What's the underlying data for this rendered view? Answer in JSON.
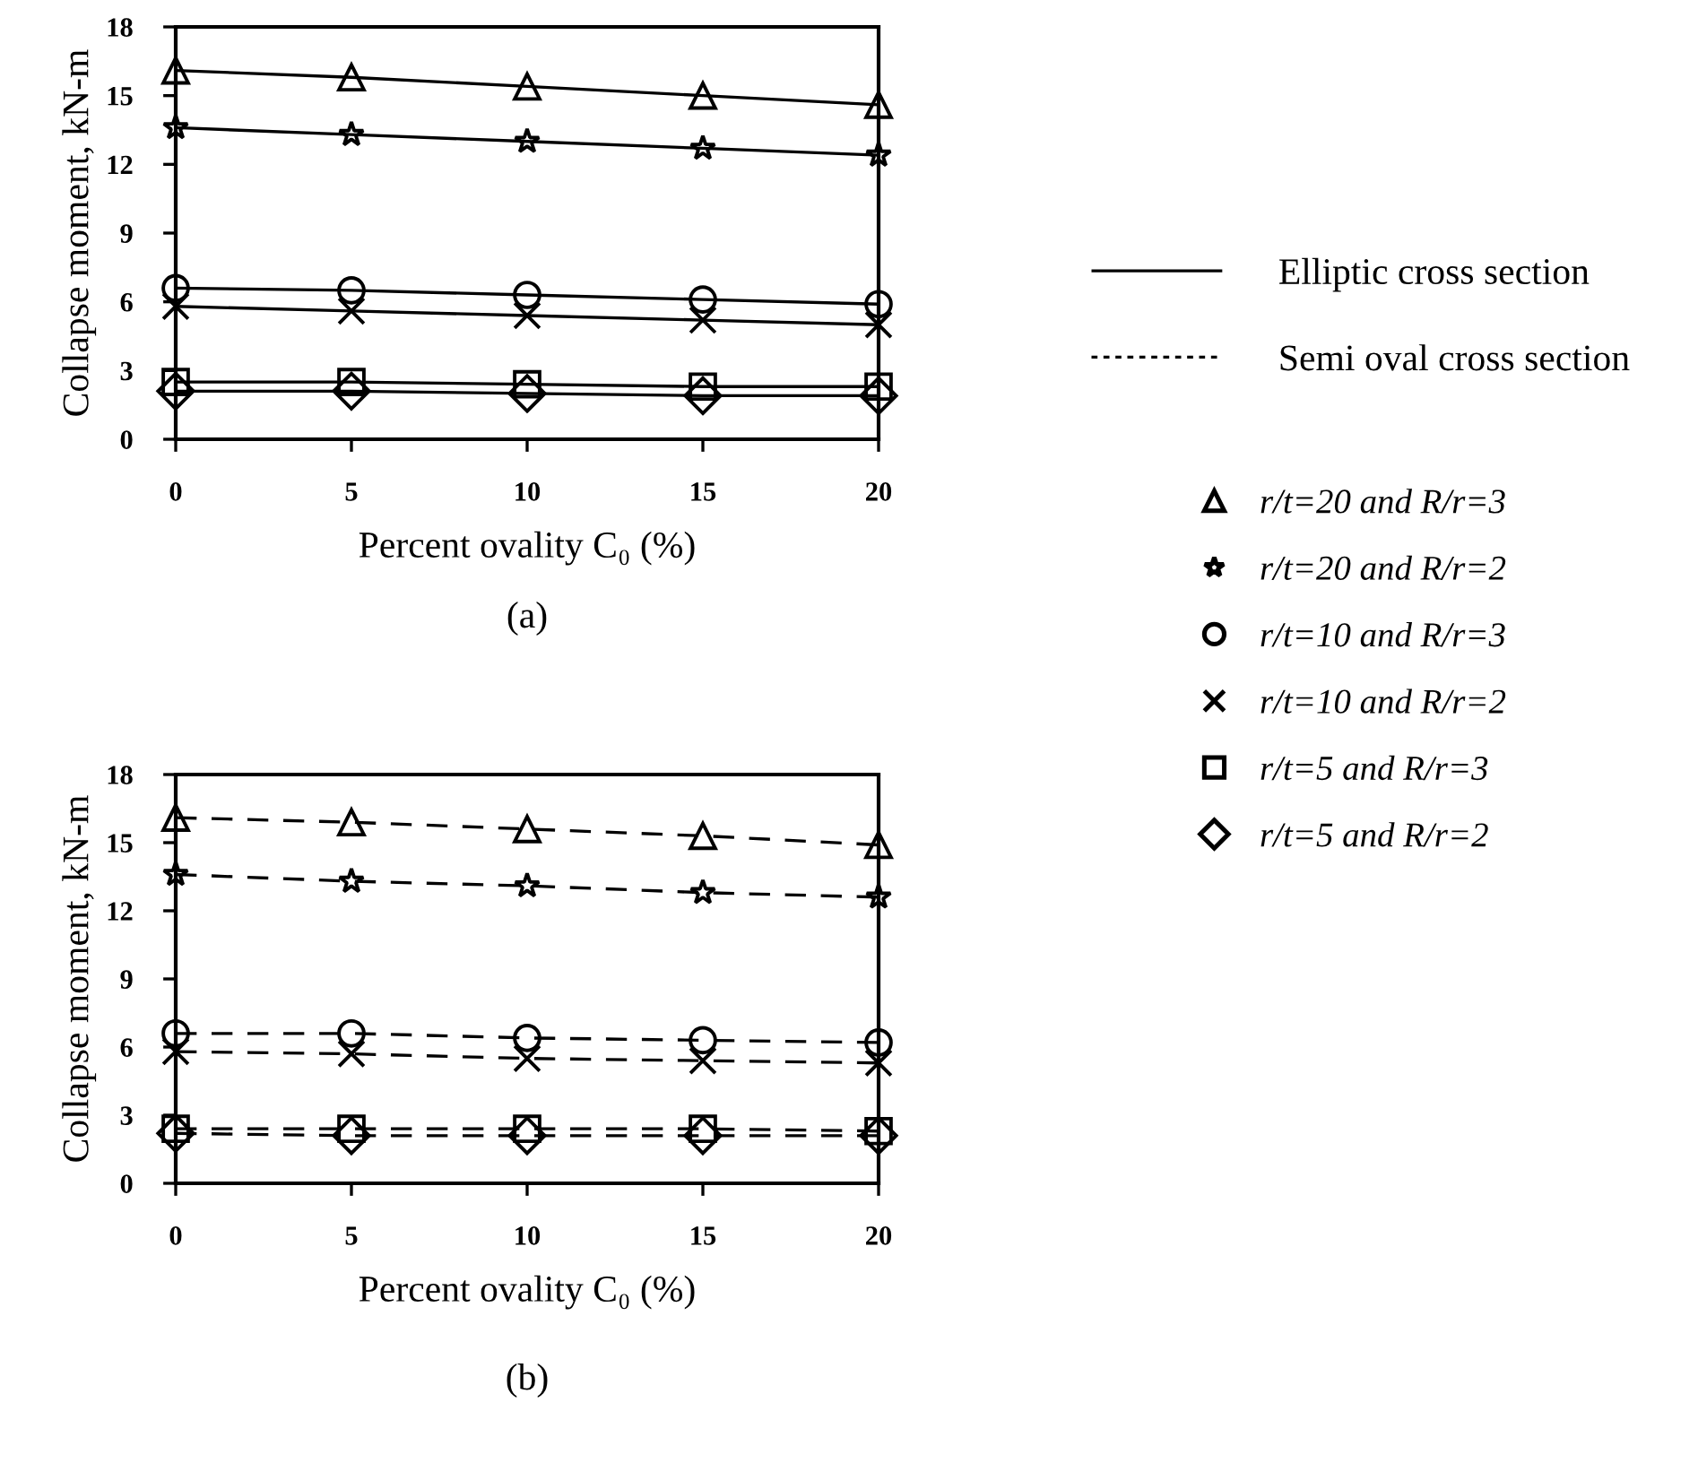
{
  "chart_data": [
    {
      "type": "line",
      "xlabel": "Percent ovality C₀ (%)",
      "ylabel": "Collapse moment, kN-m",
      "x": [
        0,
        5,
        10,
        15,
        20
      ],
      "xlim": [
        0,
        20
      ],
      "xticks": [
        0,
        5,
        10,
        15,
        20
      ],
      "ylim": [
        0,
        18
      ],
      "yticks": [
        0,
        3,
        6,
        9,
        12,
        15,
        18
      ],
      "grid": false,
      "line_style": "solid",
      "legend": "right",
      "annotations": [
        "Elliptic cross section",
        "(a)"
      ],
      "series": [
        {
          "name": "r/t=20 and R/r=3",
          "color": "#000000",
          "marker": "triangle",
          "values": [
            16.1,
            15.8,
            15.4,
            15.0,
            14.6
          ]
        },
        {
          "name": "r/t=20 and R/r=2",
          "color": "#000000",
          "marker": "star",
          "values": [
            13.6,
            13.3,
            13.0,
            12.7,
            12.4
          ]
        },
        {
          "name": "r/t=10 and R/r=3",
          "color": "#000000",
          "marker": "circle",
          "values": [
            6.6,
            6.5,
            6.3,
            6.1,
            5.9
          ]
        },
        {
          "name": "r/t=10 and R/r=2",
          "color": "#000000",
          "marker": "cross",
          "values": [
            5.8,
            5.6,
            5.4,
            5.2,
            5.0
          ]
        },
        {
          "name": "r/t=5 and R/r=3",
          "color": "#000000",
          "marker": "square",
          "values": [
            2.5,
            2.5,
            2.4,
            2.3,
            2.3
          ]
        },
        {
          "name": "r/t=5 and R/r=2",
          "color": "#000000",
          "marker": "diamond",
          "values": [
            2.1,
            2.1,
            2.0,
            1.9,
            1.9
          ]
        }
      ]
    },
    {
      "type": "line",
      "xlabel": "Percent ovality C₀ (%)",
      "ylabel": "Collapse moment, kN-m",
      "x": [
        0,
        5,
        10,
        15,
        20
      ],
      "xlim": [
        0,
        20
      ],
      "xticks": [
        0,
        5,
        10,
        15,
        20
      ],
      "ylim": [
        0,
        18
      ],
      "yticks": [
        0,
        3,
        6,
        9,
        12,
        15,
        18
      ],
      "grid": false,
      "line_style": "dashed",
      "annotations": [
        "Semi oval cross section",
        "(b)"
      ],
      "series": [
        {
          "color": "#000000",
          "marker": "triangle",
          "values": [
            16.1,
            15.9,
            15.6,
            15.3,
            14.9
          ]
        },
        {
          "color": "#000000",
          "marker": "star",
          "values": [
            13.6,
            13.3,
            13.1,
            12.8,
            12.6
          ]
        },
        {
          "color": "#000000",
          "marker": "circle",
          "values": [
            6.6,
            6.6,
            6.4,
            6.3,
            6.2
          ]
        },
        {
          "color": "#000000",
          "marker": "cross",
          "values": [
            5.8,
            5.7,
            5.5,
            5.4,
            5.3
          ]
        },
        {
          "color": "#000000",
          "marker": "square",
          "values": [
            2.4,
            2.4,
            2.4,
            2.4,
            2.3
          ]
        },
        {
          "color": "#000000",
          "marker": "diamond",
          "values": [
            2.2,
            2.1,
            2.1,
            2.1,
            2.1
          ]
        }
      ]
    }
  ]
}
